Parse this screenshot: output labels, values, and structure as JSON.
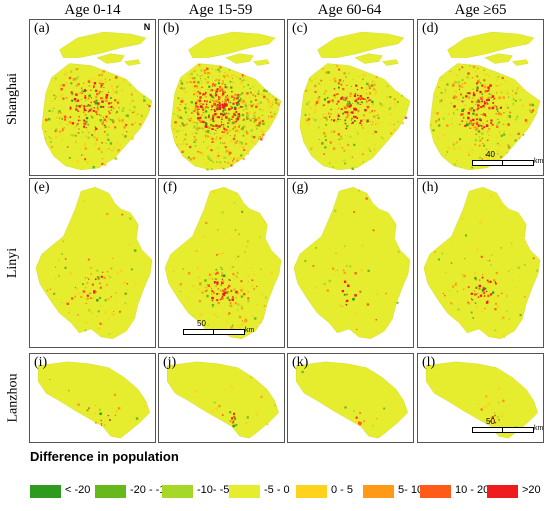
{
  "columns": [
    "Age 0-14",
    "Age 15-59",
    "Age 60-64",
    "Age ≥65"
  ],
  "rows": [
    "Shanghai",
    "Linyi",
    "Lanzhou"
  ],
  "panels": [
    [
      "(a)",
      "(b)",
      "(c)",
      "(d)"
    ],
    [
      "(e)",
      "(f)",
      "(g)",
      "(h)"
    ],
    [
      "(i)",
      "(j)",
      "(k)",
      "(l)"
    ]
  ],
  "north_label": "N",
  "scalebars": [
    {
      "value": "40",
      "unit": "km"
    },
    {
      "value": "50",
      "unit": "km"
    },
    {
      "value": "50",
      "unit": "km"
    }
  ],
  "legend": {
    "title": "Difference in population",
    "items": [
      {
        "label": "< -20",
        "color": "#2e9a1e"
      },
      {
        "label": "-20 - -10",
        "color": "#67b91b"
      },
      {
        "label": "-10- -5",
        "color": "#a6d82a"
      },
      {
        "label": "-5 - 0",
        "color": "#e6ec2e"
      },
      {
        "label": "0 - 5",
        "color": "#ffd21e"
      },
      {
        "label": "5- 10",
        "color": "#ff9a18"
      },
      {
        "label": "10 - 20",
        "color": "#ff5a18"
      },
      {
        "label": ">20",
        "color": "#ee1c1c"
      }
    ]
  }
}
